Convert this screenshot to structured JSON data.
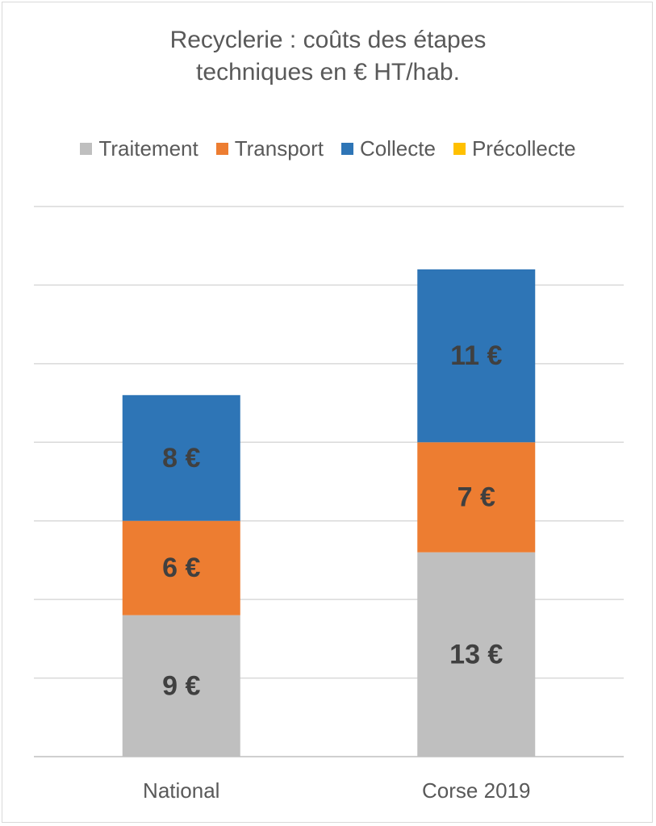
{
  "chart_data": {
    "type": "bar",
    "stacked": true,
    "title": "Recyclerie : coûts des étapes techniques en € HT/hab.",
    "title_lines": [
      "Recyclerie : coûts des étapes",
      "techniques en € HT/hab."
    ],
    "categories": [
      "National",
      "Corse 2019"
    ],
    "series": [
      {
        "name": "Traitement",
        "color": "#bfbfbf",
        "values": [
          9,
          13
        ],
        "labels": [
          "9 €",
          "13 €"
        ]
      },
      {
        "name": "Transport",
        "color": "#ed7d31",
        "values": [
          6,
          7
        ],
        "labels": [
          "6 €",
          "7 €"
        ]
      },
      {
        "name": "Collecte",
        "color": "#2e75b6",
        "values": [
          8,
          11
        ],
        "labels": [
          "8 €",
          "11 €"
        ]
      },
      {
        "name": "Précollecte",
        "color": "#ffc000",
        "values": [
          0,
          0
        ],
        "labels": [
          "",
          ""
        ]
      }
    ],
    "legend_position": "top",
    "grid": true,
    "ylim": [
      0,
      35
    ],
    "gridline_count": 7
  }
}
